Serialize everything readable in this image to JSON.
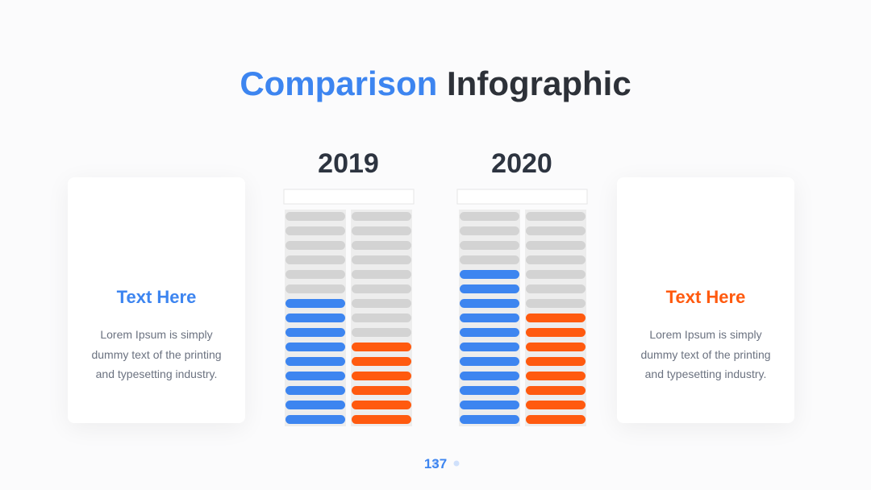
{
  "title": {
    "accent": "Comparison",
    "rest": "Infographic"
  },
  "cards": [
    {
      "heading": "Text Here",
      "body": "Lorem Ipsum is simply dummy text of the printing and typesetting industry.",
      "color": "#3d85f0"
    },
    {
      "heading": "Text Here",
      "body": "Lorem Ipsum is simply dummy text of the printing and typesetting industry.",
      "color": "#ff5a0f"
    }
  ],
  "segments": 15,
  "groups": [
    {
      "year": "2019",
      "series": [
        {
          "filled": 9,
          "color": "#3d85f0"
        },
        {
          "filled": 6,
          "color": "#ff5a0f"
        }
      ]
    },
    {
      "year": "2020",
      "series": [
        {
          "filled": 11,
          "color": "#3d85f0"
        },
        {
          "filled": 8,
          "color": "#ff5a0f"
        }
      ]
    }
  ],
  "page": 137
}
